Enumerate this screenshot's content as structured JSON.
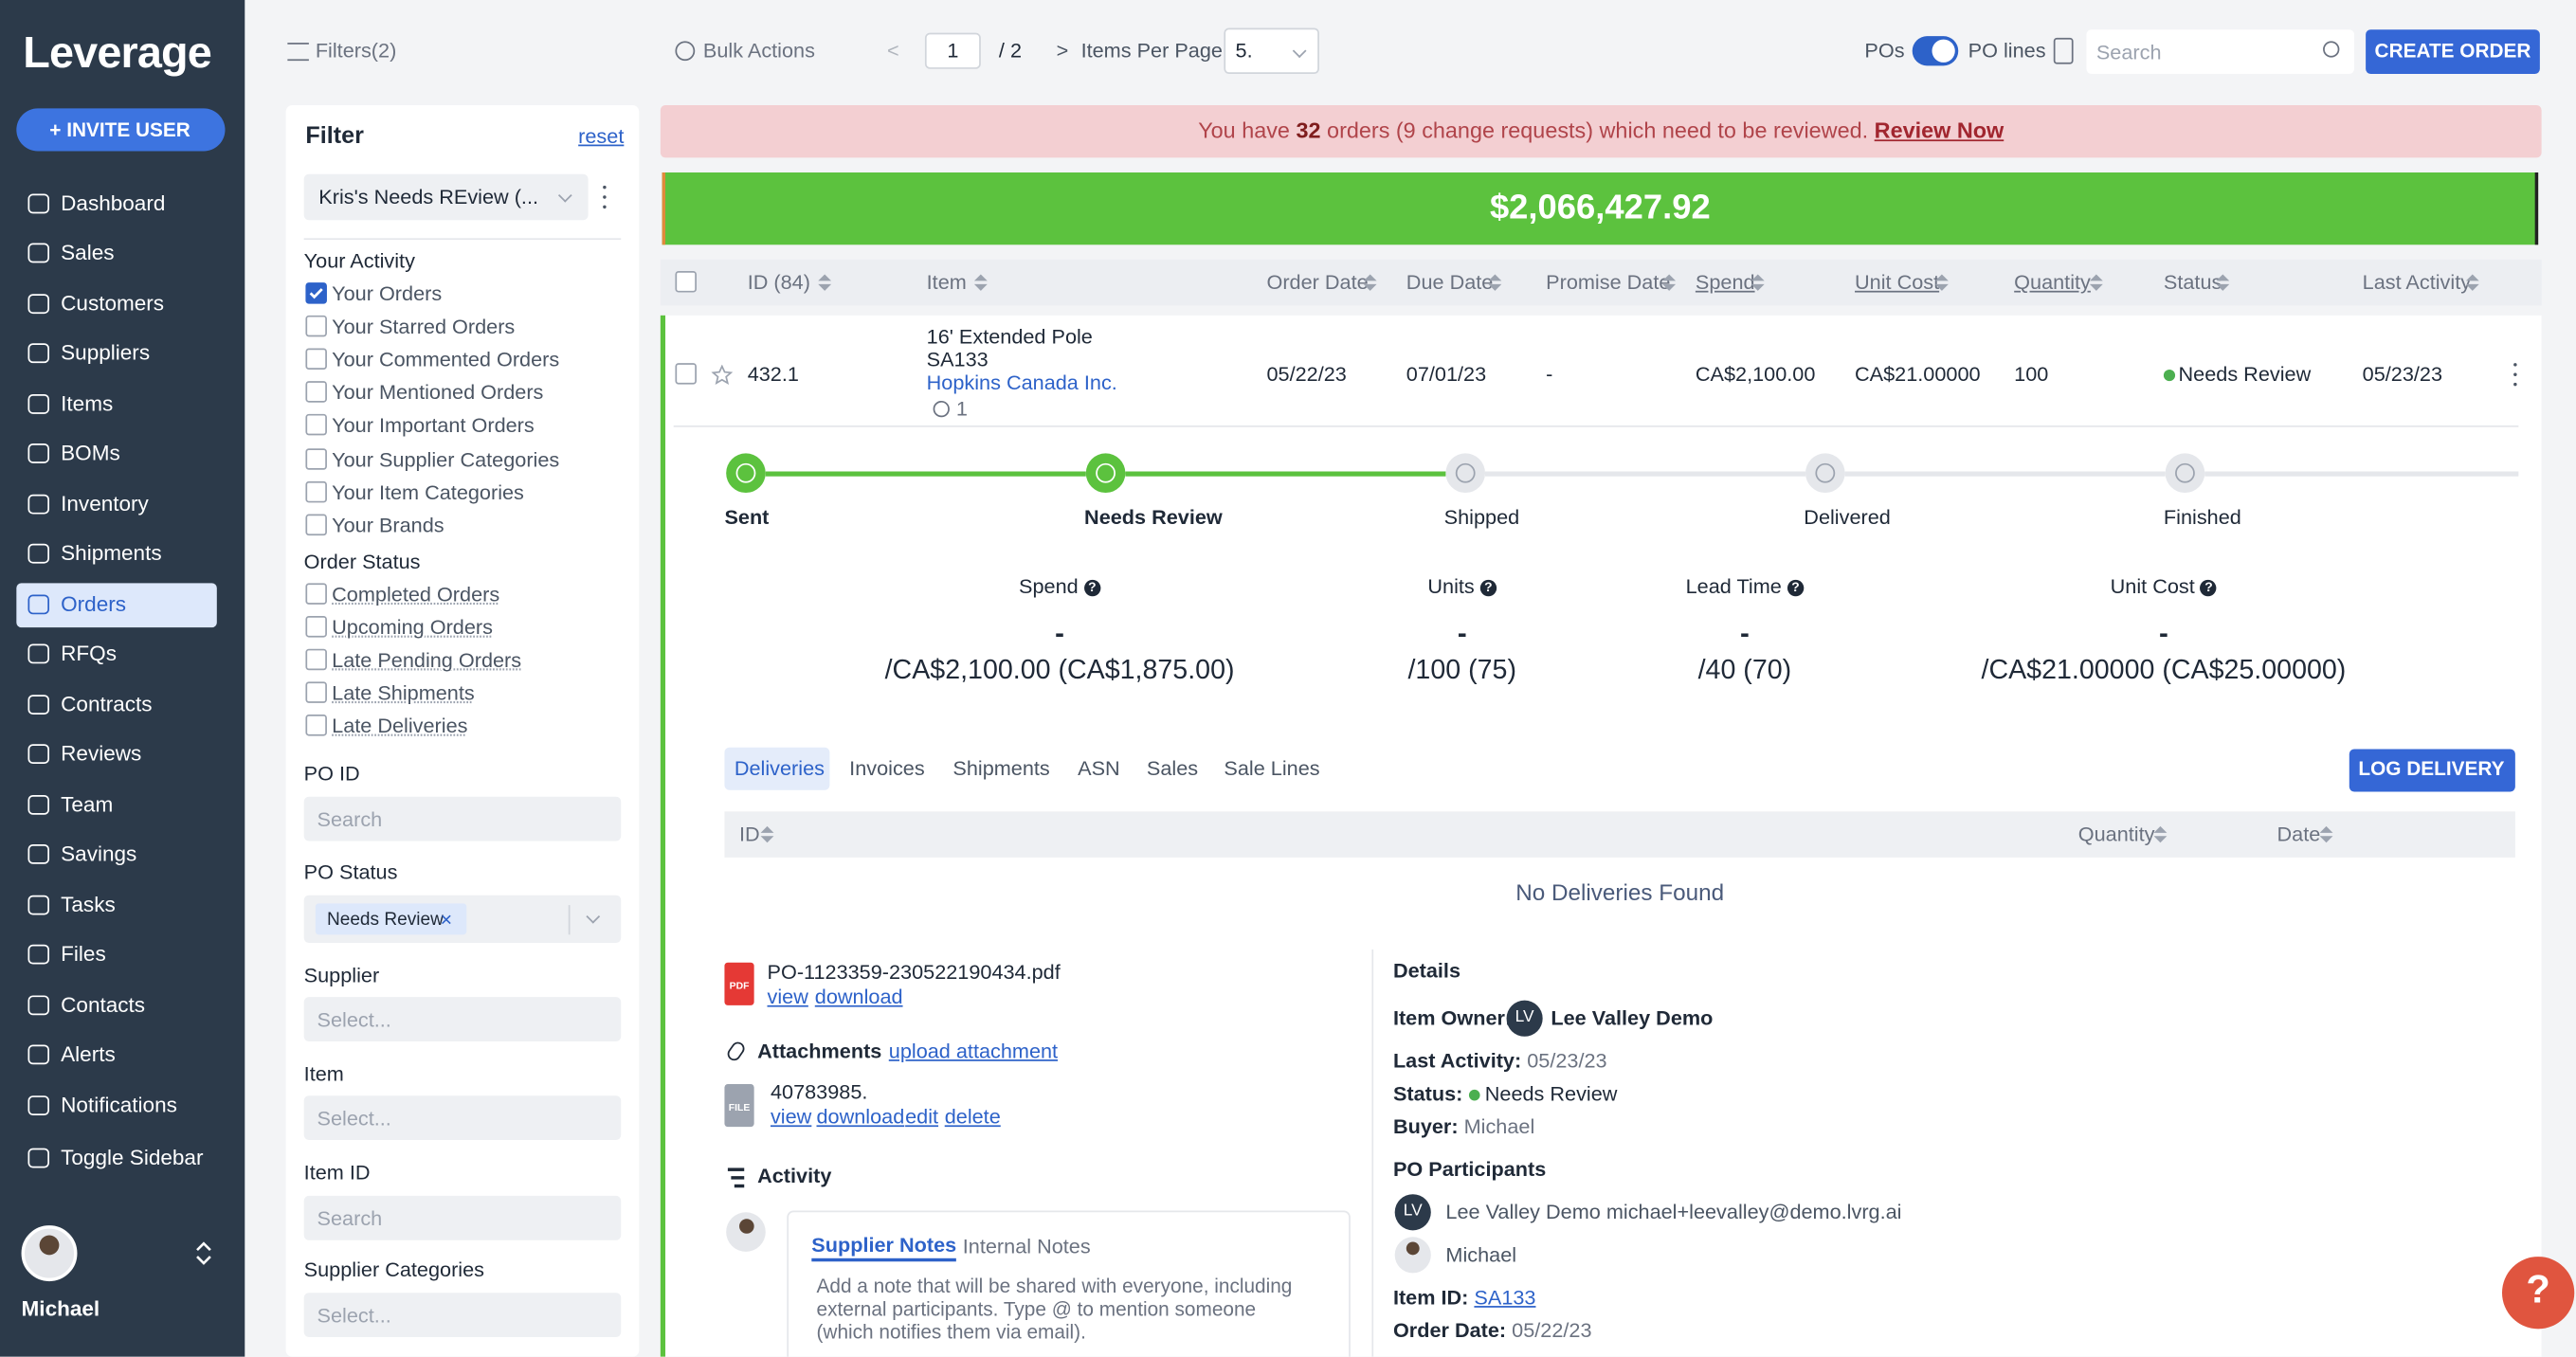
{
  "sidebar": {
    "logo": "Leverage",
    "invite": "+ INVITE USER",
    "nav": [
      "Dashboard",
      "Sales",
      "Customers",
      "Suppliers",
      "Items",
      "BOMs",
      "Inventory",
      "Shipments",
      "Orders",
      "RFQs",
      "Contracts",
      "Reviews",
      "Team",
      "Savings",
      "Tasks",
      "Files",
      "Contacts",
      "Alerts",
      "Notifications",
      "Toggle Sidebar"
    ],
    "active": 8,
    "user": "Michael"
  },
  "toolbar": {
    "filters": "Filters(2)",
    "bulk": "Bulk Actions",
    "prev": "<",
    "page": "1",
    "page_total": "/ 2",
    "next": ">",
    "items_per_page": "Items Per Page:",
    "per_page_value": "5.",
    "pos": "POs",
    "po_lines": "PO lines",
    "search": "Search",
    "create": "CREATE ORDER"
  },
  "filter": {
    "title": "Filter",
    "reset": "reset",
    "saved": "Kris's Needs REview (...",
    "your_activity": "Your Activity",
    "activity_items": [
      {
        "label": "Your Orders",
        "checked": true
      },
      {
        "label": "Your Starred Orders",
        "checked": false
      },
      {
        "label": "Your Commented Orders",
        "checked": false
      },
      {
        "label": "Your Mentioned Orders",
        "checked": false
      },
      {
        "label": "Your Important Orders",
        "checked": false
      },
      {
        "label": "Your Supplier Categories",
        "checked": false
      },
      {
        "label": "Your Item Categories",
        "checked": false
      },
      {
        "label": "Your Brands",
        "checked": false
      }
    ],
    "order_status": "Order Status",
    "status_items": [
      "Completed Orders",
      "Upcoming Orders",
      "Late Pending Orders",
      "Late Shipments",
      "Late Deliveries"
    ],
    "po_id": "PO ID",
    "po_id_placeholder": "Search",
    "po_status": "PO Status",
    "po_status_tag": "Needs Review",
    "tag_remove": "×",
    "supplier": "Supplier",
    "supplier_placeholder": "Select...",
    "item": "Item",
    "item_placeholder": "Select...",
    "item_id": "Item ID",
    "item_id_placeholder": "Search",
    "supplier_categories": "Supplier Categories",
    "supplier_categories_placeholder": "Select..."
  },
  "banner": {
    "pre": "You have",
    "count": "32",
    "post": "orders (9 change requests) which need to be reviewed.",
    "link": "Review Now"
  },
  "total": "$2,066,427.92",
  "table": {
    "columns": [
      "ID (84)",
      "Item",
      "Order Date",
      "Due Date",
      "Promise Date",
      "Spend",
      "Unit Cost",
      "Quantity",
      "Status",
      "Last Activity"
    ],
    "row": {
      "id": "432.1",
      "item_name": "16' Extended Pole",
      "item_code": "SA133",
      "supplier": "Hopkins Canada Inc.",
      "attachments": "1",
      "order_date": "05/22/23",
      "due_date": "07/01/23",
      "promise_date": "-",
      "spend": "CA$2,100.00",
      "unit_cost": "CA$21.00000",
      "quantity": "100",
      "status": "Needs Review",
      "last_activity": "05/23/23"
    }
  },
  "progress": {
    "steps": [
      "Sent",
      "Needs Review",
      "Shipped",
      "Delivered",
      "Finished"
    ],
    "done": 2
  },
  "metric_help": "?",
  "metrics": [
    {
      "label": "Spend",
      "dash": "-",
      "value": "/CA$2,100.00 (CA$1,875.00)"
    },
    {
      "label": "Units",
      "dash": "-",
      "value": "/100 (75)"
    },
    {
      "label": "Lead Time",
      "dash": "-",
      "value": "/40 (70)"
    },
    {
      "label": "Unit Cost",
      "dash": "-",
      "value": "/CA$21.00000 (CA$25.00000)"
    }
  ],
  "tabs": [
    "Deliveries",
    "Invoices",
    "Shipments",
    "ASN",
    "Sales",
    "Sale Lines"
  ],
  "active_tab": 0,
  "log_delivery": "LOG DELIVERY",
  "deliveries": {
    "columns": [
      "ID",
      "Quantity",
      "Date"
    ],
    "empty": "No Deliveries Found"
  },
  "documents": {
    "pdf_icon": "PDF",
    "pdf_name": "PO-1123359-230522190434.pdf",
    "pdf_links": [
      "view",
      "download"
    ],
    "attachments": "Attachments",
    "upload": "upload attachment",
    "file_icon": "FILE",
    "file_name": "40783985.",
    "file_links": [
      "view",
      "download",
      "edit",
      "delete"
    ],
    "activity": "Activity",
    "note_tabs": [
      "Supplier Notes",
      "Internal Notes"
    ],
    "note_placeholder": "Add a note that will be shared with everyone, including external participants. Type @ to mention someone (which notifies them via email)."
  },
  "details": {
    "title": "Details",
    "item_owner_label": "Item Owner:",
    "owner_initials": "LV",
    "owner": "Lee Valley Demo",
    "last_activity_label": "Last Activity:",
    "last_activity": "05/23/23",
    "status_label": "Status:",
    "status": "Needs Review",
    "buyer_label": "Buyer:",
    "buyer": "Michael",
    "participants_title": "PO Participants",
    "participants": [
      {
        "initials": "LV",
        "text": "Lee Valley Demo michael+leevalley@demo.lvrg.ai"
      },
      {
        "text": "Michael"
      }
    ],
    "item_id_label": "Item ID:",
    "item_id": "SA133",
    "order_date_label": "Order Date:",
    "order_date": "05/22/23"
  },
  "help": "?"
}
